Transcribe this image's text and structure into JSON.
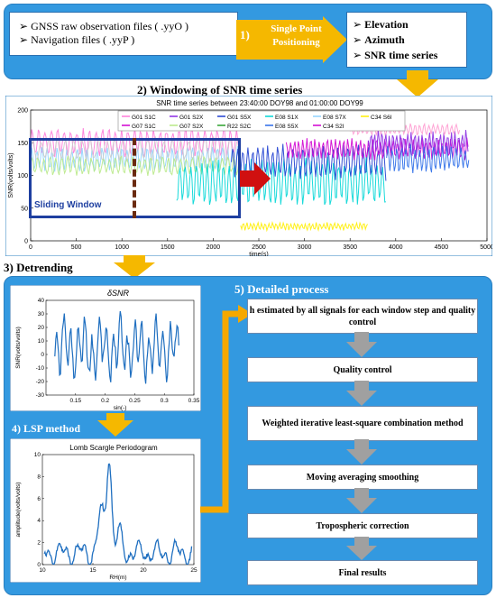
{
  "inputs": [
    "GNSS raw observation files ( .yyO )",
    "Navigation files ( .yyP )"
  ],
  "step1": {
    "num": "1)",
    "label_line1": "Single Point",
    "label_line2": "Positioning"
  },
  "outputs": [
    "Elevation",
    "Azimuth",
    "SNR time series"
  ],
  "step2": {
    "title": "2) Windowing of SNR time series",
    "chart_title": "SNR time series between 23:40:00 DOY98 and 01:00:00 DOY99",
    "ylabel": "SNR(volts/volts)",
    "xlabel": "time(s)",
    "sliding_window": "Sliding Window"
  },
  "legend": [
    "G01 S1C",
    "G01 S2X",
    "G01 S5X",
    "E08 S1X",
    "E08 S7X",
    "C34 S6I",
    "G07 S1C",
    "G07 S2X",
    "R22 S2C",
    "E08 S5X",
    "C34 S2I"
  ],
  "step3": {
    "title": "3) Detrending",
    "chart_title": "δSNR",
    "ylabel": "SNR(volts/volts)",
    "xlabel": "sin(-)"
  },
  "step4": {
    "title": "4) LSP method",
    "chart_title": "Lomb Scargle Periodogram",
    "ylabel": "amplitude(volts/volts)",
    "xlabel": "RH(m)"
  },
  "step5": {
    "title": "5) Detailed process",
    "boxes": [
      "h estimated by all signals for each window step and quality control",
      "Quality control",
      "Weighted iterative least-square combination method",
      "Moving averaging smoothing",
      "Tropospheric correction",
      "Final results"
    ]
  },
  "colors": {
    "panel": "#3399e0",
    "arrow": "#f5b800",
    "window": "#1e3fa0",
    "red_arrow": "#d01010"
  },
  "chart_data": [
    {
      "type": "line",
      "title": "SNR time series between 23:40:00 DOY98 and 01:00:00 DOY99",
      "xlabel": "time(s)",
      "ylabel": "SNR(volts/volts)",
      "xlim": [
        0,
        5000
      ],
      "ylim": [
        0,
        200
      ],
      "xticks": [
        0,
        500,
        1000,
        1500,
        2000,
        2500,
        3000,
        3500,
        4000,
        4500,
        5000
      ],
      "yticks": [
        0,
        50,
        100,
        150,
        200
      ],
      "series_names": [
        "G01 S1C",
        "G01 S2X",
        "G01 S5X",
        "E08 S1X",
        "E08 S7X",
        "C34 S6I",
        "G07 S1C",
        "G07 S2X",
        "R22 S2C",
        "E08 S5X",
        "C34 S2I"
      ]
    },
    {
      "type": "line",
      "title": "δSNR",
      "xlabel": "sin(-)",
      "ylabel": "SNR(volts/volts)",
      "xlim": [
        0.1,
        0.35
      ],
      "ylim": [
        -30,
        40
      ],
      "xticks": [
        0.15,
        0.2,
        0.25,
        0.3,
        0.35
      ],
      "yticks": [
        -30,
        -20,
        -10,
        0,
        10,
        20,
        30,
        40
      ]
    },
    {
      "type": "line",
      "title": "Lomb Scargle Periodogram",
      "xlabel": "RH(m)",
      "ylabel": "amplitude(volts/volts)",
      "xlim": [
        10,
        25
      ],
      "ylim": [
        0,
        10
      ],
      "xticks": [
        10,
        15,
        20,
        25
      ],
      "yticks": [
        0,
        2,
        4,
        6,
        8,
        10
      ],
      "peak": {
        "x": 16.6,
        "y": 9
      }
    }
  ]
}
